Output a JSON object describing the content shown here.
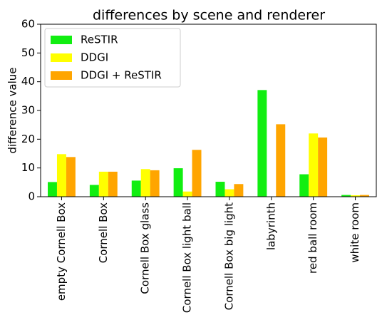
{
  "chart_data": {
    "type": "bar",
    "title": "differences by scene and renderer",
    "ylabel": "difference value",
    "categories": [
      "empty Cornell Box",
      "Cornell Box",
      "Cornell Box glass",
      "Cornell Box light ball",
      "Cornell Box big light",
      "labyrinth",
      "red ball room",
      "white room"
    ],
    "series": [
      {
        "name": "ReSTIR",
        "color": "#11ee11",
        "values": [
          5.1,
          4.1,
          5.6,
          9.9,
          5.2,
          37.1,
          7.8,
          0.6
        ]
      },
      {
        "name": "DDGI",
        "color": "#ffff00",
        "values": [
          14.8,
          8.7,
          9.6,
          1.8,
          2.6,
          0,
          22.0,
          0.5
        ]
      },
      {
        "name": "DDGI + ReSTIR",
        "color": "#ffa500",
        "values": [
          13.8,
          8.7,
          9.2,
          16.3,
          4.4,
          25.2,
          20.6,
          0.6
        ]
      }
    ],
    "ylim": [
      0,
      60
    ],
    "yticks": [
      0,
      10,
      20,
      30,
      40,
      50,
      60
    ],
    "legend": "upper left"
  }
}
